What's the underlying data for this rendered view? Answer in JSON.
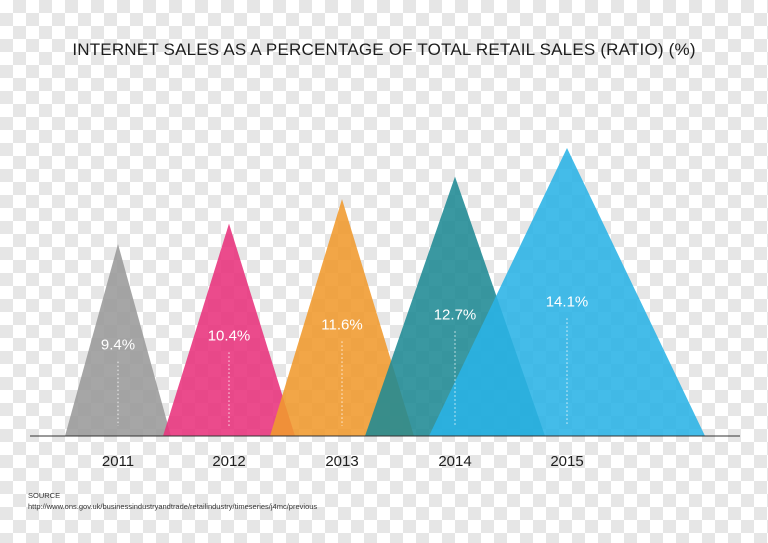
{
  "chart_data": {
    "type": "area",
    "title": "INTERNET SALES AS A PERCENTAGE OF TOTAL RETAIL SALES (RATIO) (%)",
    "categories": [
      "2011",
      "2012",
      "2013",
      "2014",
      "2015"
    ],
    "series": [
      {
        "values": [
          9.4,
          10.4,
          11.6,
          12.7,
          14.1
        ],
        "labels": [
          "9.4%",
          "10.4%",
          "11.6%",
          "12.7%",
          "14.1%"
        ]
      }
    ],
    "colors": [
      "#9a9a9a",
      "#e8327c",
      "#f09a2e",
      "#1f8a94",
      "#2ab3e6"
    ],
    "ylim": [
      0,
      14.1
    ],
    "grid": false,
    "legend": "none"
  },
  "source": {
    "label": "SOURCE",
    "url": "http://www.ons.gov.uk/businessindustryandtrade/retailindustry/timeseries/j4mc/previous"
  }
}
